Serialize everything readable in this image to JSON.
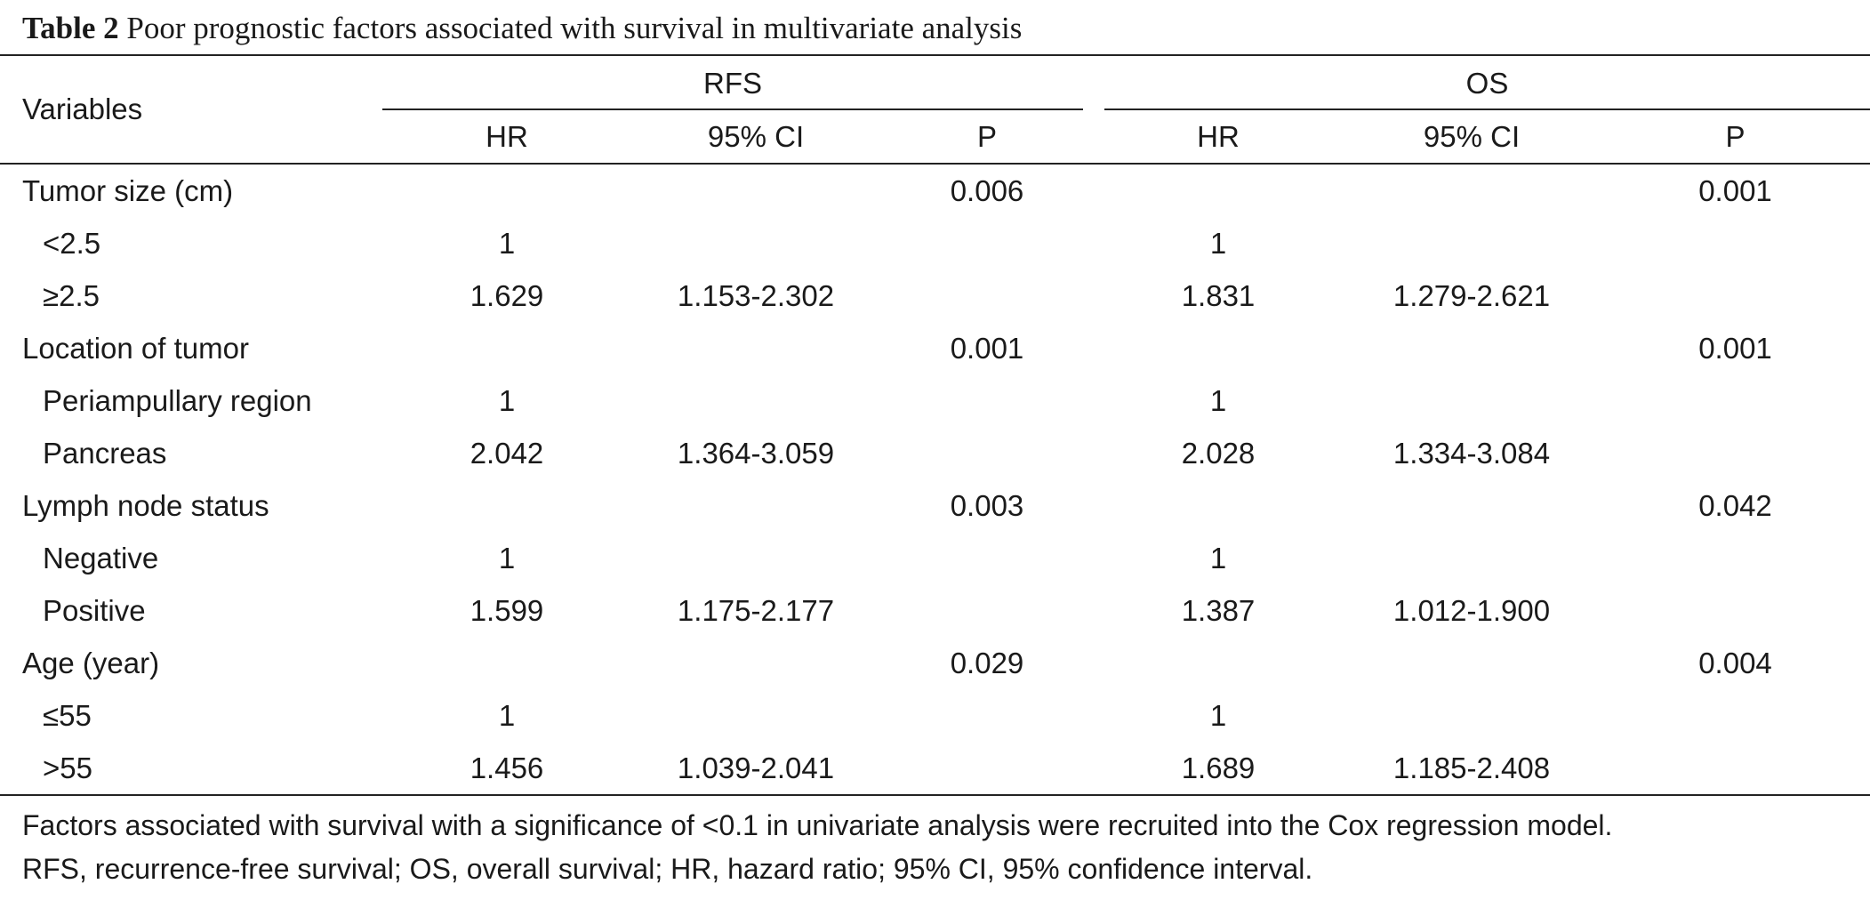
{
  "caption": {
    "label": "Table 2",
    "text": "Poor prognostic factors associated with survival in multivariate analysis"
  },
  "header": {
    "variables": "Variables",
    "group_rfs": "RFS",
    "group_os": "OS",
    "sub": [
      "HR",
      "95% CI",
      "P",
      "HR",
      "95% CI",
      "P"
    ]
  },
  "rows": [
    {
      "label": "Tumor size (cm)",
      "indent": false,
      "rfs_hr": "",
      "rfs_ci": "",
      "rfs_p": "0.006",
      "os_hr": "",
      "os_ci": "",
      "os_p": "0.001"
    },
    {
      "label": "<2.5",
      "indent": true,
      "rfs_hr": "1",
      "rfs_ci": "",
      "rfs_p": "",
      "os_hr": "1",
      "os_ci": "",
      "os_p": ""
    },
    {
      "label": "≥2.5",
      "indent": true,
      "rfs_hr": "1.629",
      "rfs_ci": "1.153-2.302",
      "rfs_p": "",
      "os_hr": "1.831",
      "os_ci": "1.279-2.621",
      "os_p": ""
    },
    {
      "label": "Location of tumor",
      "indent": false,
      "rfs_hr": "",
      "rfs_ci": "",
      "rfs_p": "0.001",
      "os_hr": "",
      "os_ci": "",
      "os_p": "0.001"
    },
    {
      "label": "Periampullary region",
      "indent": true,
      "rfs_hr": "1",
      "rfs_ci": "",
      "rfs_p": "",
      "os_hr": "1",
      "os_ci": "",
      "os_p": ""
    },
    {
      "label": "Pancreas",
      "indent": true,
      "rfs_hr": "2.042",
      "rfs_ci": "1.364-3.059",
      "rfs_p": "",
      "os_hr": "2.028",
      "os_ci": "1.334-3.084",
      "os_p": ""
    },
    {
      "label": "Lymph node status",
      "indent": false,
      "rfs_hr": "",
      "rfs_ci": "",
      "rfs_p": "0.003",
      "os_hr": "",
      "os_ci": "",
      "os_p": "0.042"
    },
    {
      "label": "Negative",
      "indent": true,
      "rfs_hr": "1",
      "rfs_ci": "",
      "rfs_p": "",
      "os_hr": "1",
      "os_ci": "",
      "os_p": ""
    },
    {
      "label": "Positive",
      "indent": true,
      "rfs_hr": "1.599",
      "rfs_ci": "1.175-2.177",
      "rfs_p": "",
      "os_hr": "1.387",
      "os_ci": "1.012-1.900",
      "os_p": ""
    },
    {
      "label": "Age (year)",
      "indent": false,
      "rfs_hr": "",
      "rfs_ci": "",
      "rfs_p": "0.029",
      "os_hr": "",
      "os_ci": "",
      "os_p": "0.004"
    },
    {
      "label": "≤55",
      "indent": true,
      "rfs_hr": "1",
      "rfs_ci": "",
      "rfs_p": "",
      "os_hr": "1",
      "os_ci": "",
      "os_p": ""
    },
    {
      "label": ">55",
      "indent": true,
      "rfs_hr": "1.456",
      "rfs_ci": "1.039-2.041",
      "rfs_p": "",
      "os_hr": "1.689",
      "os_ci": "1.185-2.408",
      "os_p": ""
    }
  ],
  "footnote": {
    "line1": "Factors associated with survival with a significance of <0.1 in univariate analysis were recruited into the Cox regression model.",
    "line2": "RFS, recurrence-free survival; OS, overall survival; HR, hazard ratio; 95% CI, 95% confidence interval."
  }
}
